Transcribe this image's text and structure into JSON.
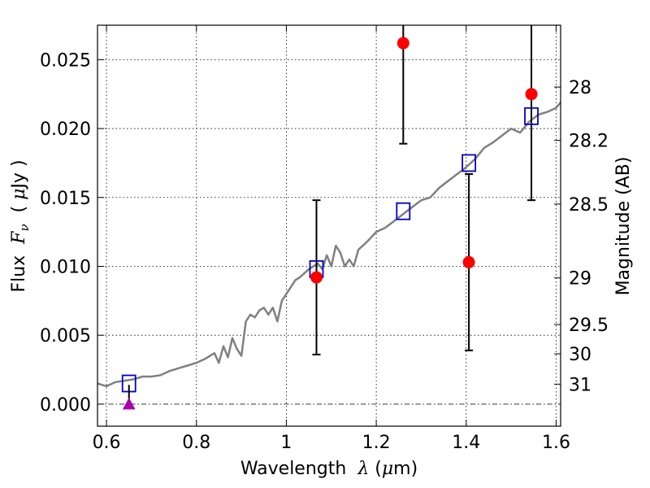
{
  "chart_data": {
    "type": "scatter",
    "title": "",
    "xlabel_parts": {
      "prefix": "Wavelength  ",
      "symbol": "λ",
      "unit_open": " (",
      "unit_mu": "μ",
      "unit_rest": "m)"
    },
    "ylabel_parts": {
      "prefix": "Flux  ",
      "symbol": "F",
      "subscript": "ν",
      "unit_open": "  ( ",
      "unit_mu": "μ",
      "unit_rest": "Jy )"
    },
    "y2label": "Magnitude (AB)",
    "xlim": [
      0.58,
      1.61
    ],
    "ylim": [
      -0.0016,
      0.0275
    ],
    "xticks": [
      0.6,
      0.8,
      1.0,
      1.2,
      1.4,
      1.6
    ],
    "xtick_labels": [
      "0.6",
      "0.8",
      "1",
      "1.2",
      "1.4",
      "1.6"
    ],
    "yticks": [
      0.0,
      0.005,
      0.01,
      0.015,
      0.02,
      0.025
    ],
    "ytick_labels": [
      "0.000",
      "0.005",
      "0.010",
      "0.015",
      "0.020",
      "0.025"
    ],
    "y2ticks": [
      {
        "label": "28",
        "flux": 0.02301
      },
      {
        "label": "28.2",
        "flux": 0.01914
      },
      {
        "label": "28.5",
        "flux": 0.01452
      },
      {
        "label": "29",
        "flux": 0.00916
      },
      {
        "label": "29.5",
        "flux": 0.00578
      },
      {
        "label": "30",
        "flux": 0.00365
      },
      {
        "label": "31",
        "flux": 0.00145
      }
    ],
    "grid": true,
    "hline": {
      "y": 0.0
    },
    "colors": {
      "model": "#808080",
      "observed": "#ff0000",
      "synthetic": "#0000cc",
      "upper_limit": "#aa00aa",
      "errorbar": "#000000",
      "grid": "#000000"
    },
    "series": [
      {
        "kind": "line",
        "x": [
          0.58,
          0.6,
          0.62,
          0.64,
          0.66,
          0.68,
          0.7,
          0.72,
          0.74,
          0.76,
          0.78,
          0.8,
          0.82,
          0.84,
          0.85,
          0.86,
          0.87,
          0.88,
          0.89,
          0.9,
          0.91,
          0.92,
          0.93,
          0.94,
          0.95,
          0.96,
          0.97,
          0.98,
          0.99,
          1.0,
          1.01,
          1.02,
          1.03,
          1.04,
          1.05,
          1.06,
          1.07,
          1.08,
          1.09,
          1.1,
          1.11,
          1.12,
          1.13,
          1.14,
          1.15,
          1.16,
          1.18,
          1.2,
          1.22,
          1.24,
          1.26,
          1.28,
          1.3,
          1.32,
          1.34,
          1.36,
          1.38,
          1.4,
          1.42,
          1.44,
          1.46,
          1.48,
          1.5,
          1.52,
          1.54,
          1.56,
          1.58,
          1.6,
          1.61
        ],
        "y": [
          0.0015,
          0.0013,
          0.0016,
          0.0017,
          0.0018,
          0.002,
          0.002,
          0.0021,
          0.0024,
          0.0026,
          0.0028,
          0.003,
          0.0033,
          0.0037,
          0.003,
          0.0042,
          0.0034,
          0.0048,
          0.004,
          0.0035,
          0.006,
          0.0065,
          0.0063,
          0.0068,
          0.007,
          0.0065,
          0.007,
          0.006,
          0.0075,
          0.008,
          0.0085,
          0.009,
          0.0092,
          0.0095,
          0.0098,
          0.01,
          0.0102,
          0.0098,
          0.0108,
          0.01,
          0.0115,
          0.011,
          0.01,
          0.0105,
          0.01,
          0.0112,
          0.0118,
          0.0125,
          0.0128,
          0.0133,
          0.0138,
          0.0143,
          0.0148,
          0.015,
          0.0157,
          0.0162,
          0.0167,
          0.0172,
          0.0178,
          0.0186,
          0.019,
          0.0195,
          0.02,
          0.0197,
          0.0205,
          0.021,
          0.0212,
          0.0215,
          0.0219
        ]
      },
      {
        "kind": "scatter",
        "x": [
          1.067,
          1.26,
          1.406,
          1.545
        ],
        "y": [
          0.0092,
          0.0262,
          0.0103,
          0.0225
        ],
        "err_low": [
          0.0056,
          0.0073,
          0.0064,
          0.0077
        ],
        "err_high": [
          0.0056,
          0.009,
          0.0064,
          0.0077
        ]
      },
      {
        "kind": "scatter",
        "marker": "square",
        "x": [
          0.65,
          1.067,
          1.26,
          1.406,
          1.545
        ],
        "y": [
          0.0015,
          0.0098,
          0.014,
          0.0175,
          0.0209
        ]
      },
      {
        "kind": "upper_limit",
        "x": [
          0.65
        ],
        "y": [
          0.0
        ],
        "err_high": [
          0.0014
        ]
      }
    ]
  }
}
